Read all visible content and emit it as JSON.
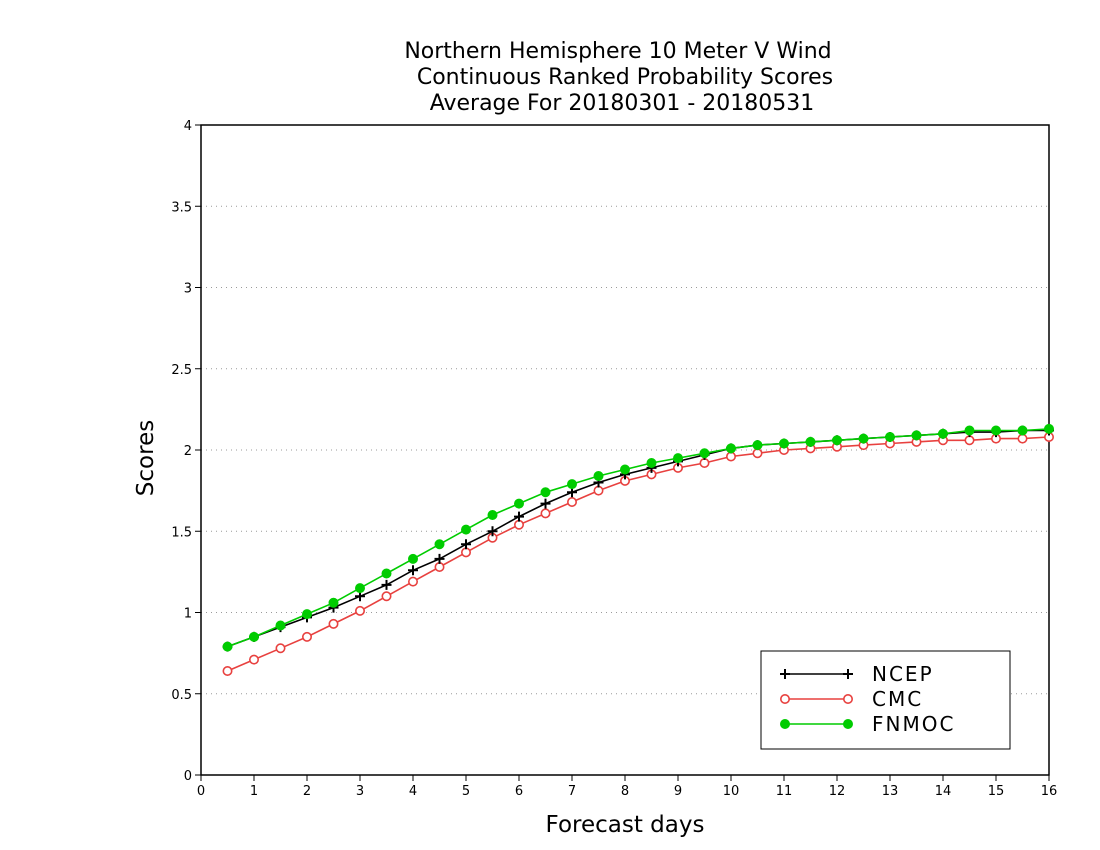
{
  "chart_data": {
    "type": "line",
    "title": [
      "Northern Hemisphere 10 Meter V Wind",
      "Continuous Ranked Probability Scores",
      "Average For 20180301 - 20180531"
    ],
    "xlabel": "Forecast days",
    "ylabel": "Scores",
    "xlim": [
      0,
      16
    ],
    "ylim": [
      0,
      4
    ],
    "xticks": [
      "0",
      "1",
      "2",
      "3",
      "4",
      "5",
      "6",
      "7",
      "8",
      "9",
      "10",
      "11",
      "12",
      "13",
      "14",
      "15",
      "16"
    ],
    "yticks": [
      "0",
      "0.5",
      "1",
      "1.5",
      "2",
      "2.5",
      "3",
      "3.5",
      "4"
    ],
    "grid": "horizontal dotted",
    "legend_position": "bottom-right",
    "x": [
      0.5,
      1,
      1.5,
      2,
      2.5,
      3,
      3.5,
      4,
      4.5,
      5,
      5.5,
      6,
      6.5,
      7,
      7.5,
      8,
      8.5,
      9,
      9.5,
      10,
      10.5,
      11,
      11.5,
      12,
      12.5,
      13,
      13.5,
      14,
      14.5,
      15,
      15.5,
      16
    ],
    "series": [
      {
        "name": "NCEP",
        "color": "#000000",
        "marker": "plus",
        "values": [
          0.79,
          0.85,
          0.91,
          0.97,
          1.03,
          1.1,
          1.17,
          1.26,
          1.33,
          1.42,
          1.5,
          1.59,
          1.67,
          1.74,
          1.8,
          1.85,
          1.89,
          1.93,
          1.97,
          2.01,
          2.03,
          2.04,
          2.05,
          2.06,
          2.07,
          2.08,
          2.09,
          2.1,
          2.11,
          2.11,
          2.12,
          2.12
        ]
      },
      {
        "name": "CMC",
        "color": "#e8413f",
        "marker": "open-circle",
        "values": [
          0.64,
          0.71,
          0.78,
          0.85,
          0.93,
          1.01,
          1.1,
          1.19,
          1.28,
          1.37,
          1.46,
          1.54,
          1.61,
          1.68,
          1.75,
          1.81,
          1.85,
          1.89,
          1.92,
          1.96,
          1.98,
          2.0,
          2.01,
          2.02,
          2.03,
          2.04,
          2.05,
          2.06,
          2.06,
          2.07,
          2.07,
          2.08
        ]
      },
      {
        "name": "FNMOC",
        "color": "#00cc00",
        "marker": "filled-circle",
        "values": [
          0.79,
          0.85,
          0.92,
          0.99,
          1.06,
          1.15,
          1.24,
          1.33,
          1.42,
          1.51,
          1.6,
          1.67,
          1.74,
          1.79,
          1.84,
          1.88,
          1.92,
          1.95,
          1.98,
          2.01,
          2.03,
          2.04,
          2.05,
          2.06,
          2.07,
          2.08,
          2.09,
          2.1,
          2.12,
          2.12,
          2.12,
          2.13
        ]
      }
    ]
  }
}
